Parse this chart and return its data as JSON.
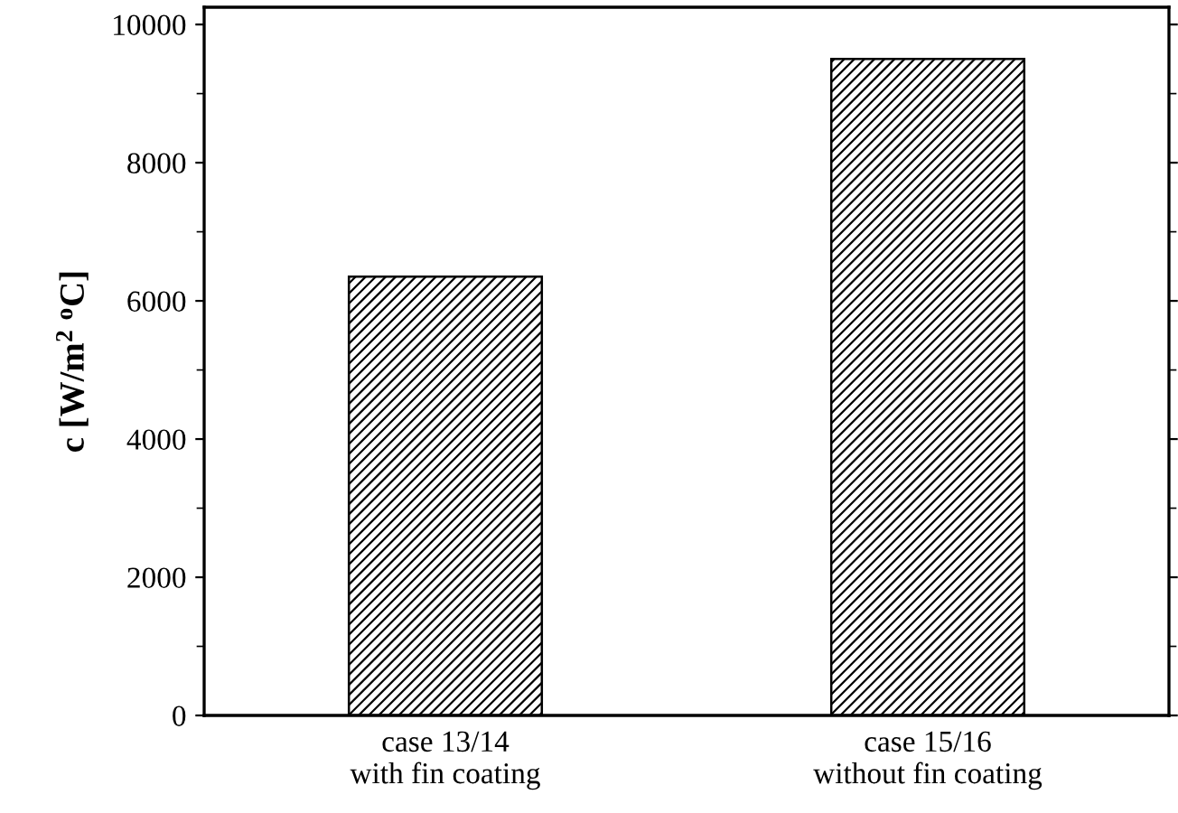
{
  "chart_data": {
    "type": "bar",
    "ylabel": "c [W/m$^{2}$ $^{o}$C]",
    "categories": [
      "case 13/14\nwith fin coating",
      "case 15/16\nwithout fin coating"
    ],
    "values": [
      6350,
      9500
    ],
    "color": "#000000",
    "ylim": [
      0,
      10250
    ],
    "yticks": [
      0,
      2000,
      4000,
      6000,
      8000,
      10000
    ],
    "grid": false
  }
}
